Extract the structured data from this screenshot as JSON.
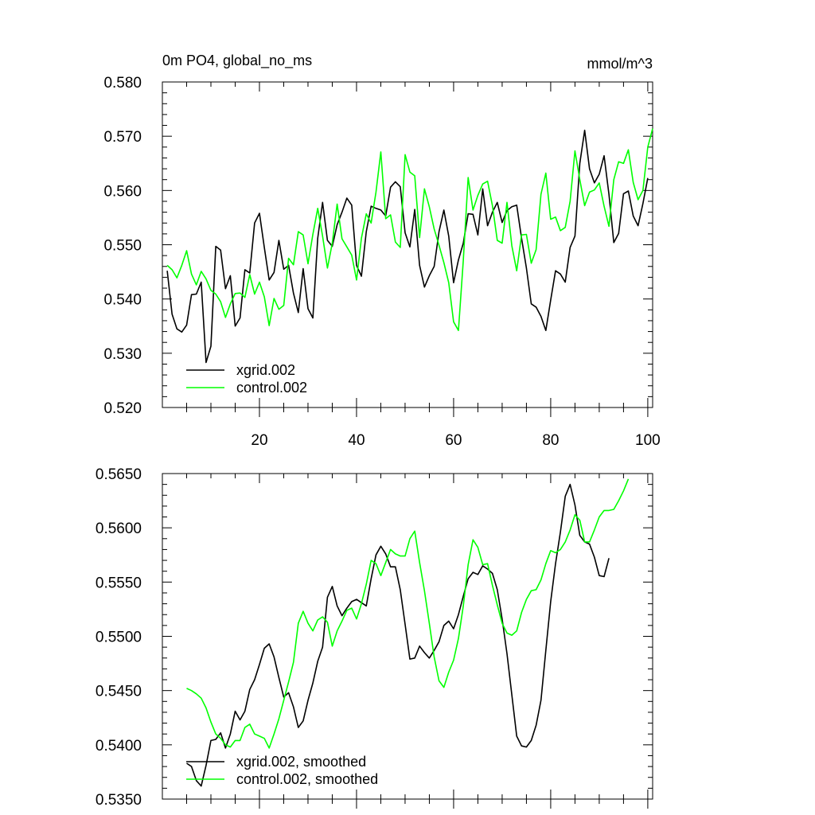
{
  "chart_data": [
    {
      "type": "line",
      "title": "0m PO4, global_no_ms",
      "units": "mmol/m^3",
      "xlim": [
        0,
        101
      ],
      "ylim": [
        0.52,
        0.58
      ],
      "x_ticks": [
        "20",
        "40",
        "60",
        "80",
        "100"
      ],
      "y_ticks": [
        "0.520",
        "0.530",
        "0.540",
        "0.550",
        "0.560",
        "0.570",
        "0.580"
      ],
      "grid": false,
      "legend_position": "bottom-left",
      "series": [
        {
          "name": "xgrid.002",
          "color": "#000000",
          "x0": 1,
          "values": [
            0.5452,
            0.5372,
            0.5345,
            0.5339,
            0.5352,
            0.5408,
            0.5409,
            0.5431,
            0.5283,
            0.5313,
            0.5497,
            0.549,
            0.5419,
            0.5443,
            0.535,
            0.5365,
            0.5454,
            0.5448,
            0.554,
            0.5558,
            0.5495,
            0.5435,
            0.5449,
            0.5508,
            0.5455,
            0.5462,
            0.5411,
            0.5375,
            0.5456,
            0.5382,
            0.5365,
            0.5512,
            0.5578,
            0.5508,
            0.5497,
            0.5537,
            0.556,
            0.5586,
            0.5573,
            0.5462,
            0.5442,
            0.5524,
            0.5571,
            0.5567,
            0.5564,
            0.5553,
            0.5606,
            0.5616,
            0.5607,
            0.5522,
            0.5496,
            0.5565,
            0.5462,
            0.5422,
            0.5443,
            0.546,
            0.5524,
            0.5564,
            0.5516,
            0.543,
            0.5472,
            0.5503,
            0.5557,
            0.5556,
            0.5518,
            0.5603,
            0.5535,
            0.556,
            0.5578,
            0.5541,
            0.5563,
            0.557,
            0.5573,
            0.5512,
            0.5457,
            0.5391,
            0.5385,
            0.5368,
            0.5342,
            0.5398,
            0.5452,
            0.5446,
            0.5431,
            0.5495,
            0.5516,
            0.565,
            0.5711,
            0.564,
            0.5614,
            0.563,
            0.5664,
            0.5593,
            0.5504,
            0.5521,
            0.5594,
            0.5599,
            0.5553,
            0.5535,
            0.5576,
            0.5623
          ]
        },
        {
          "name": "control.002",
          "color": "#00ff00",
          "x0": 1,
          "values": [
            0.5462,
            0.5454,
            0.5439,
            0.5462,
            0.5489,
            0.5446,
            0.5426,
            0.5451,
            0.5437,
            0.5416,
            0.5409,
            0.5395,
            0.5366,
            0.5391,
            0.541,
            0.5411,
            0.5403,
            0.5445,
            0.5409,
            0.5431,
            0.5404,
            0.5351,
            0.5401,
            0.5381,
            0.5388,
            0.5475,
            0.5463,
            0.5524,
            0.5518,
            0.5465,
            0.5519,
            0.5567,
            0.5516,
            0.5457,
            0.5503,
            0.5575,
            0.5511,
            0.5496,
            0.5481,
            0.5435,
            0.5512,
            0.5557,
            0.554,
            0.5597,
            0.5671,
            0.5548,
            0.5555,
            0.5505,
            0.5495,
            0.5666,
            0.5634,
            0.5627,
            0.5513,
            0.5603,
            0.557,
            0.5529,
            0.5499,
            0.5467,
            0.543,
            0.5358,
            0.5342,
            0.5471,
            0.5624,
            0.5564,
            0.5591,
            0.5612,
            0.5617,
            0.5572,
            0.5508,
            0.5503,
            0.5578,
            0.5498,
            0.5452,
            0.5518,
            0.5519,
            0.5466,
            0.5491,
            0.5593,
            0.5632,
            0.5547,
            0.5551,
            0.5526,
            0.5532,
            0.558,
            0.5673,
            0.562,
            0.5572,
            0.5597,
            0.5601,
            0.5614,
            0.5571,
            0.5534,
            0.562,
            0.5653,
            0.565,
            0.5675,
            0.5615,
            0.5583,
            0.56,
            0.568,
            0.5714
          ]
        }
      ]
    },
    {
      "type": "line",
      "title": "",
      "xlim": [
        0,
        101
      ],
      "ylim": [
        0.535,
        0.565
      ],
      "x_ticks": [],
      "y_ticks": [
        "0.5350",
        "0.5400",
        "0.5450",
        "0.5500",
        "0.5550",
        "0.5600",
        "0.5650"
      ],
      "grid": false,
      "legend_position": "bottom-left",
      "series": [
        {
          "name": "xgrid.002, smoothed",
          "color": "#000000",
          "x0": 5,
          "values": [
            0.5383,
            0.538,
            0.5367,
            0.5362,
            0.5381,
            0.5404,
            0.5405,
            0.5411,
            0.5397,
            0.541,
            0.5431,
            0.5423,
            0.5431,
            0.5451,
            0.546,
            0.5474,
            0.5489,
            0.5493,
            0.5481,
            0.5462,
            0.5444,
            0.5448,
            0.5435,
            0.5416,
            0.5422,
            0.5441,
            0.5457,
            0.5477,
            0.549,
            0.5536,
            0.5546,
            0.5528,
            0.5519,
            0.5526,
            0.5532,
            0.5534,
            0.5531,
            0.5528,
            0.5553,
            0.5575,
            0.5583,
            0.5576,
            0.5564,
            0.5564,
            0.5543,
            0.5511,
            0.5479,
            0.548,
            0.5491,
            0.5485,
            0.548,
            0.5487,
            0.5495,
            0.551,
            0.5514,
            0.5507,
            0.552,
            0.5537,
            0.5553,
            0.5559,
            0.5557,
            0.5565,
            0.5562,
            0.5558,
            0.5543,
            0.5516,
            0.5484,
            0.5446,
            0.5408,
            0.5399,
            0.5398,
            0.5404,
            0.5418,
            0.5441,
            0.5487,
            0.5532,
            0.5567,
            0.5596,
            0.5629,
            0.564,
            0.5621,
            0.5593,
            0.5587,
            0.5585,
            0.5573,
            0.5556,
            0.5555,
            0.5572
          ]
        },
        {
          "name": "control.002, smoothed",
          "color": "#00ff00",
          "x0": 5,
          "values": [
            0.5452,
            0.545,
            0.5447,
            0.5443,
            0.5434,
            0.5421,
            0.541,
            0.5406,
            0.54,
            0.5398,
            0.5404,
            0.5404,
            0.5416,
            0.5419,
            0.541,
            0.5408,
            0.5406,
            0.5397,
            0.541,
            0.5424,
            0.5441,
            0.5458,
            0.5476,
            0.5512,
            0.5523,
            0.5512,
            0.5505,
            0.5515,
            0.5518,
            0.5513,
            0.5491,
            0.5505,
            0.5514,
            0.5524,
            0.5526,
            0.5516,
            0.553,
            0.5548,
            0.557,
            0.5567,
            0.5556,
            0.5568,
            0.558,
            0.5576,
            0.5574,
            0.5574,
            0.559,
            0.5597,
            0.5568,
            0.5542,
            0.5512,
            0.5481,
            0.5459,
            0.5453,
            0.5467,
            0.5478,
            0.5498,
            0.5528,
            0.5566,
            0.5589,
            0.5582,
            0.5566,
            0.5567,
            0.5547,
            0.5529,
            0.5512,
            0.5503,
            0.5501,
            0.5505,
            0.5522,
            0.5534,
            0.5542,
            0.5543,
            0.5552,
            0.5567,
            0.5579,
            0.5577,
            0.558,
            0.5587,
            0.5598,
            0.5612,
            0.5607,
            0.5587,
            0.5587,
            0.5598,
            0.561,
            0.5616,
            0.5616,
            0.5617,
            0.5625,
            0.5634,
            0.5645
          ]
        }
      ]
    }
  ]
}
